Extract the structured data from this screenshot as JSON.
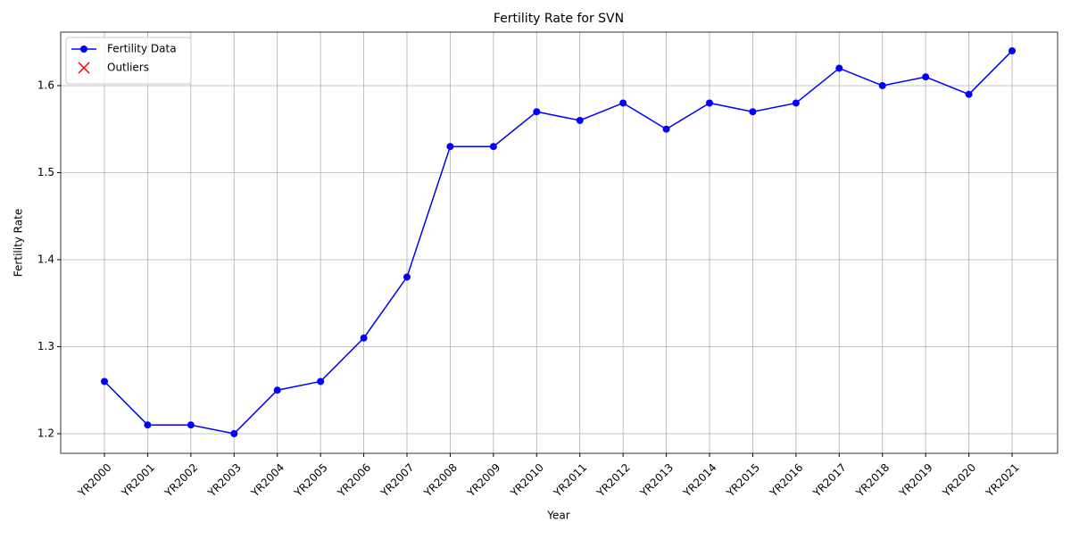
{
  "chart_data": {
    "type": "line",
    "title": "Fertility Rate for SVN",
    "x_label": "Year",
    "y_label": "Fertility Rate",
    "categories": [
      "YR2000",
      "YR2001",
      "YR2002",
      "YR2003",
      "YR2004",
      "YR2005",
      "YR2006",
      "YR2007",
      "YR2008",
      "YR2009",
      "YR2010",
      "YR2011",
      "YR2012",
      "YR2013",
      "YR2014",
      "YR2015",
      "YR2016",
      "YR2017",
      "YR2018",
      "YR2019",
      "YR2020",
      "YR2021"
    ],
    "series": [
      {
        "name": "Fertility Data",
        "color": "#0000ff",
        "marker": "o",
        "values": [
          1.26,
          1.21,
          1.21,
          1.2,
          1.25,
          1.26,
          1.31,
          1.38,
          1.53,
          1.53,
          1.57,
          1.56,
          1.58,
          1.55,
          1.58,
          1.57,
          1.58,
          1.62,
          1.6,
          1.61,
          1.59,
          1.64
        ]
      },
      {
        "name": "Outliers",
        "color": "#ff0000",
        "marker": "x",
        "values": [
          null,
          null,
          null,
          null,
          null,
          null,
          null,
          null,
          null,
          null,
          null,
          null,
          null,
          null,
          null,
          null,
          null,
          null,
          null,
          null,
          null,
          null
        ]
      }
    ],
    "ylim": [
      1.1774,
      1.6615
    ],
    "yticks": [
      1.2,
      1.3,
      1.4,
      1.5,
      1.6
    ],
    "grid": true,
    "legend": "upper left"
  }
}
